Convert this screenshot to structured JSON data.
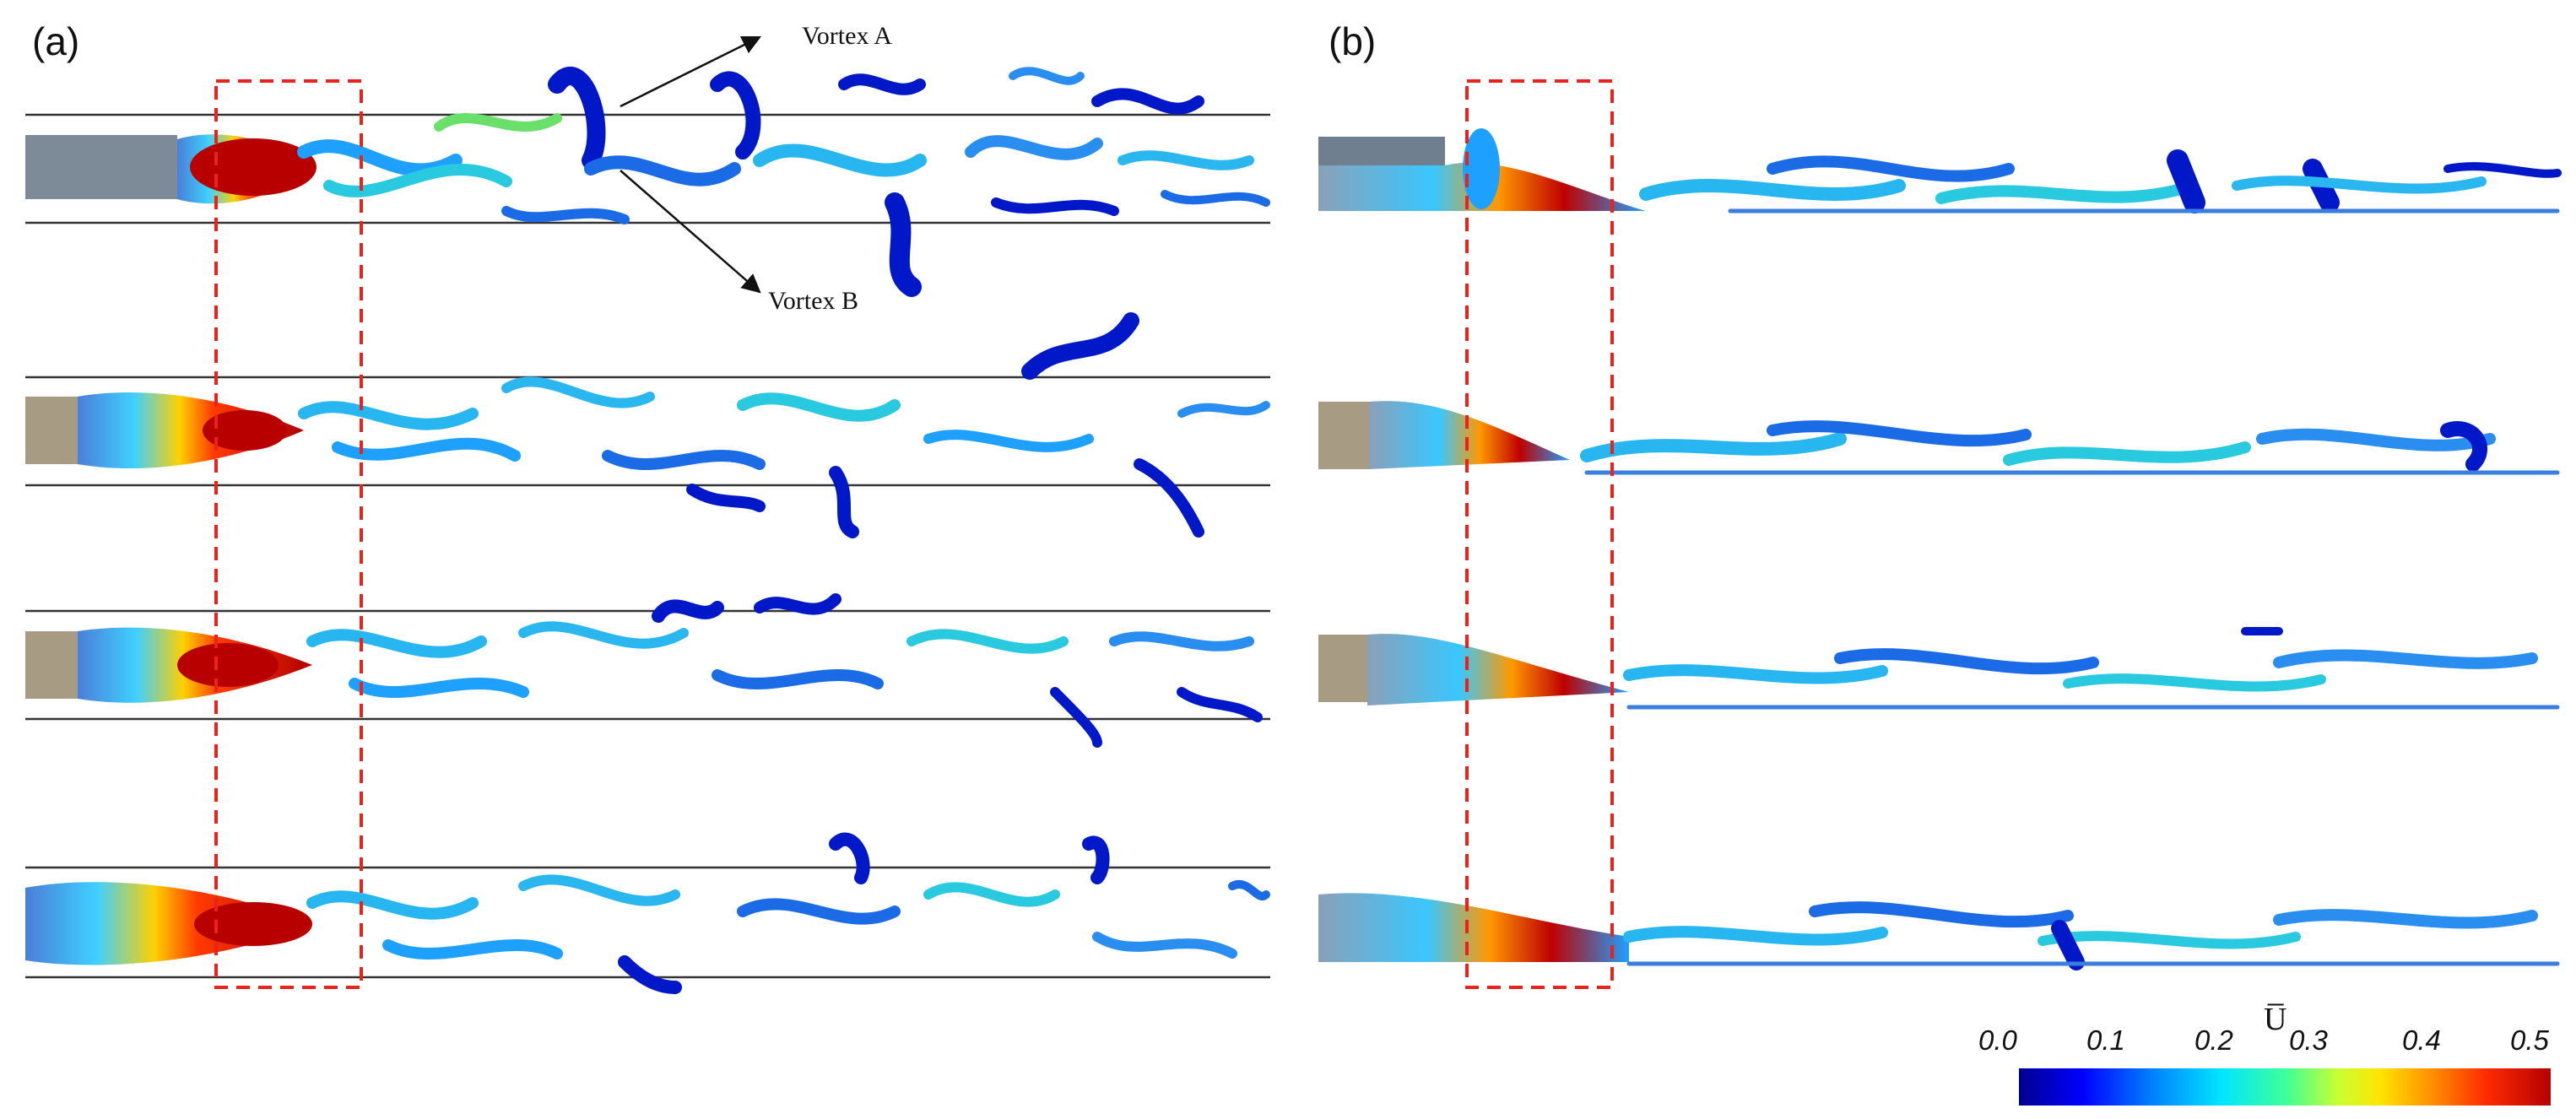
{
  "figure": {
    "panel_a_label": "(a)",
    "panel_b_label": "(b)",
    "annotation_vortex_a": "Vortex A",
    "annotation_vortex_b": "Vortex B"
  },
  "colorbar": {
    "title": "U̅",
    "ticks": [
      "0.0",
      "0.1",
      "0.2",
      "0.3",
      "0.4",
      "0.5"
    ],
    "range": [
      0.0,
      0.5
    ],
    "colormap": "jet"
  },
  "colors": {
    "channel_line": "#333333",
    "dashed_box": "#e8231c",
    "core": "#c00000"
  }
}
